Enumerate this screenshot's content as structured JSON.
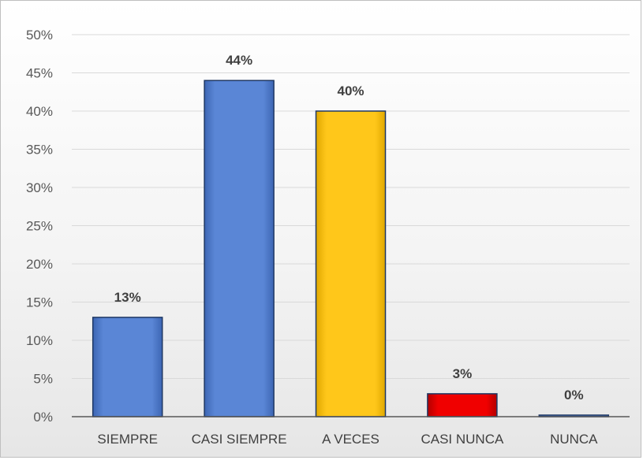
{
  "chart_data": {
    "type": "bar",
    "title": "",
    "xlabel": "",
    "ylabel": "",
    "categories": [
      "SIEMPRE",
      "CASI SIEMPRE",
      "A VECES",
      "CASI NUNCA",
      "NUNCA"
    ],
    "values": [
      13,
      44,
      40,
      3,
      0
    ],
    "data_labels": [
      "13%",
      "44%",
      "40%",
      "3%",
      "0%"
    ],
    "bar_colors": [
      "#4f7ccc",
      "#4f7ccc",
      "#ffc000",
      "#e00000",
      "#4f7ccc"
    ],
    "ylim": [
      0,
      50
    ],
    "yticks": [
      0,
      5,
      10,
      15,
      20,
      25,
      30,
      35,
      40,
      45,
      50
    ],
    "ytick_labels": [
      "0%",
      "5%",
      "10%",
      "15%",
      "20%",
      "25%",
      "30%",
      "35%",
      "40%",
      "45%",
      "50%"
    ],
    "grid": true,
    "legend": "none"
  }
}
